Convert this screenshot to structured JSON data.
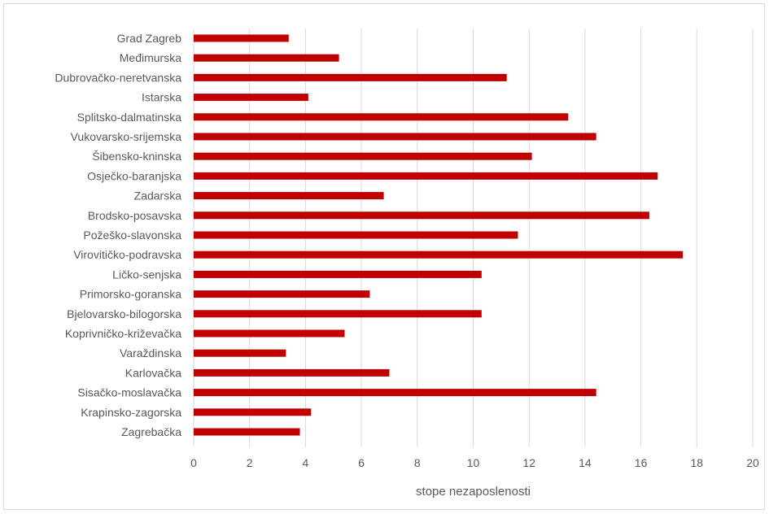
{
  "chart_data": {
    "type": "bar",
    "orientation": "horizontal",
    "categories": [
      "Grad Zagreb",
      "Međimurska",
      "Dubrovačko-neretvanska",
      "Istarska",
      "Splitsko-dalmatinska",
      "Vukovarsko-srijemska",
      "Šibensko-kninska",
      "Osječko-baranjska",
      "Zadarska",
      "Brodsko-posavska",
      "Požeško-slavonska",
      "Virovitičko-podravska",
      "Ličko-senjska",
      "Primorsko-goranska",
      "Bjelovarsko-bilogorska",
      "Koprivničko-križevačka",
      "Varaždinska",
      "Karlovačka",
      "Sisačko-moslavačka",
      "Krapinsko-zagorska",
      "Zagrebačka"
    ],
    "values": [
      3.4,
      5.2,
      11.2,
      4.1,
      13.4,
      14.4,
      12.1,
      16.6,
      6.8,
      16.3,
      11.6,
      17.5,
      10.3,
      6.3,
      10.3,
      5.4,
      3.3,
      7.0,
      14.4,
      4.2,
      3.8
    ],
    "xlabel": "stope nezaposlenosti",
    "ylabel": "",
    "title": "",
    "xlim": [
      0,
      20
    ],
    "xticks": [
      0,
      2,
      4,
      6,
      8,
      10,
      12,
      14,
      16,
      18,
      20
    ],
    "grid": "vertical",
    "legend": "none",
    "bar_color": "#c00000"
  }
}
